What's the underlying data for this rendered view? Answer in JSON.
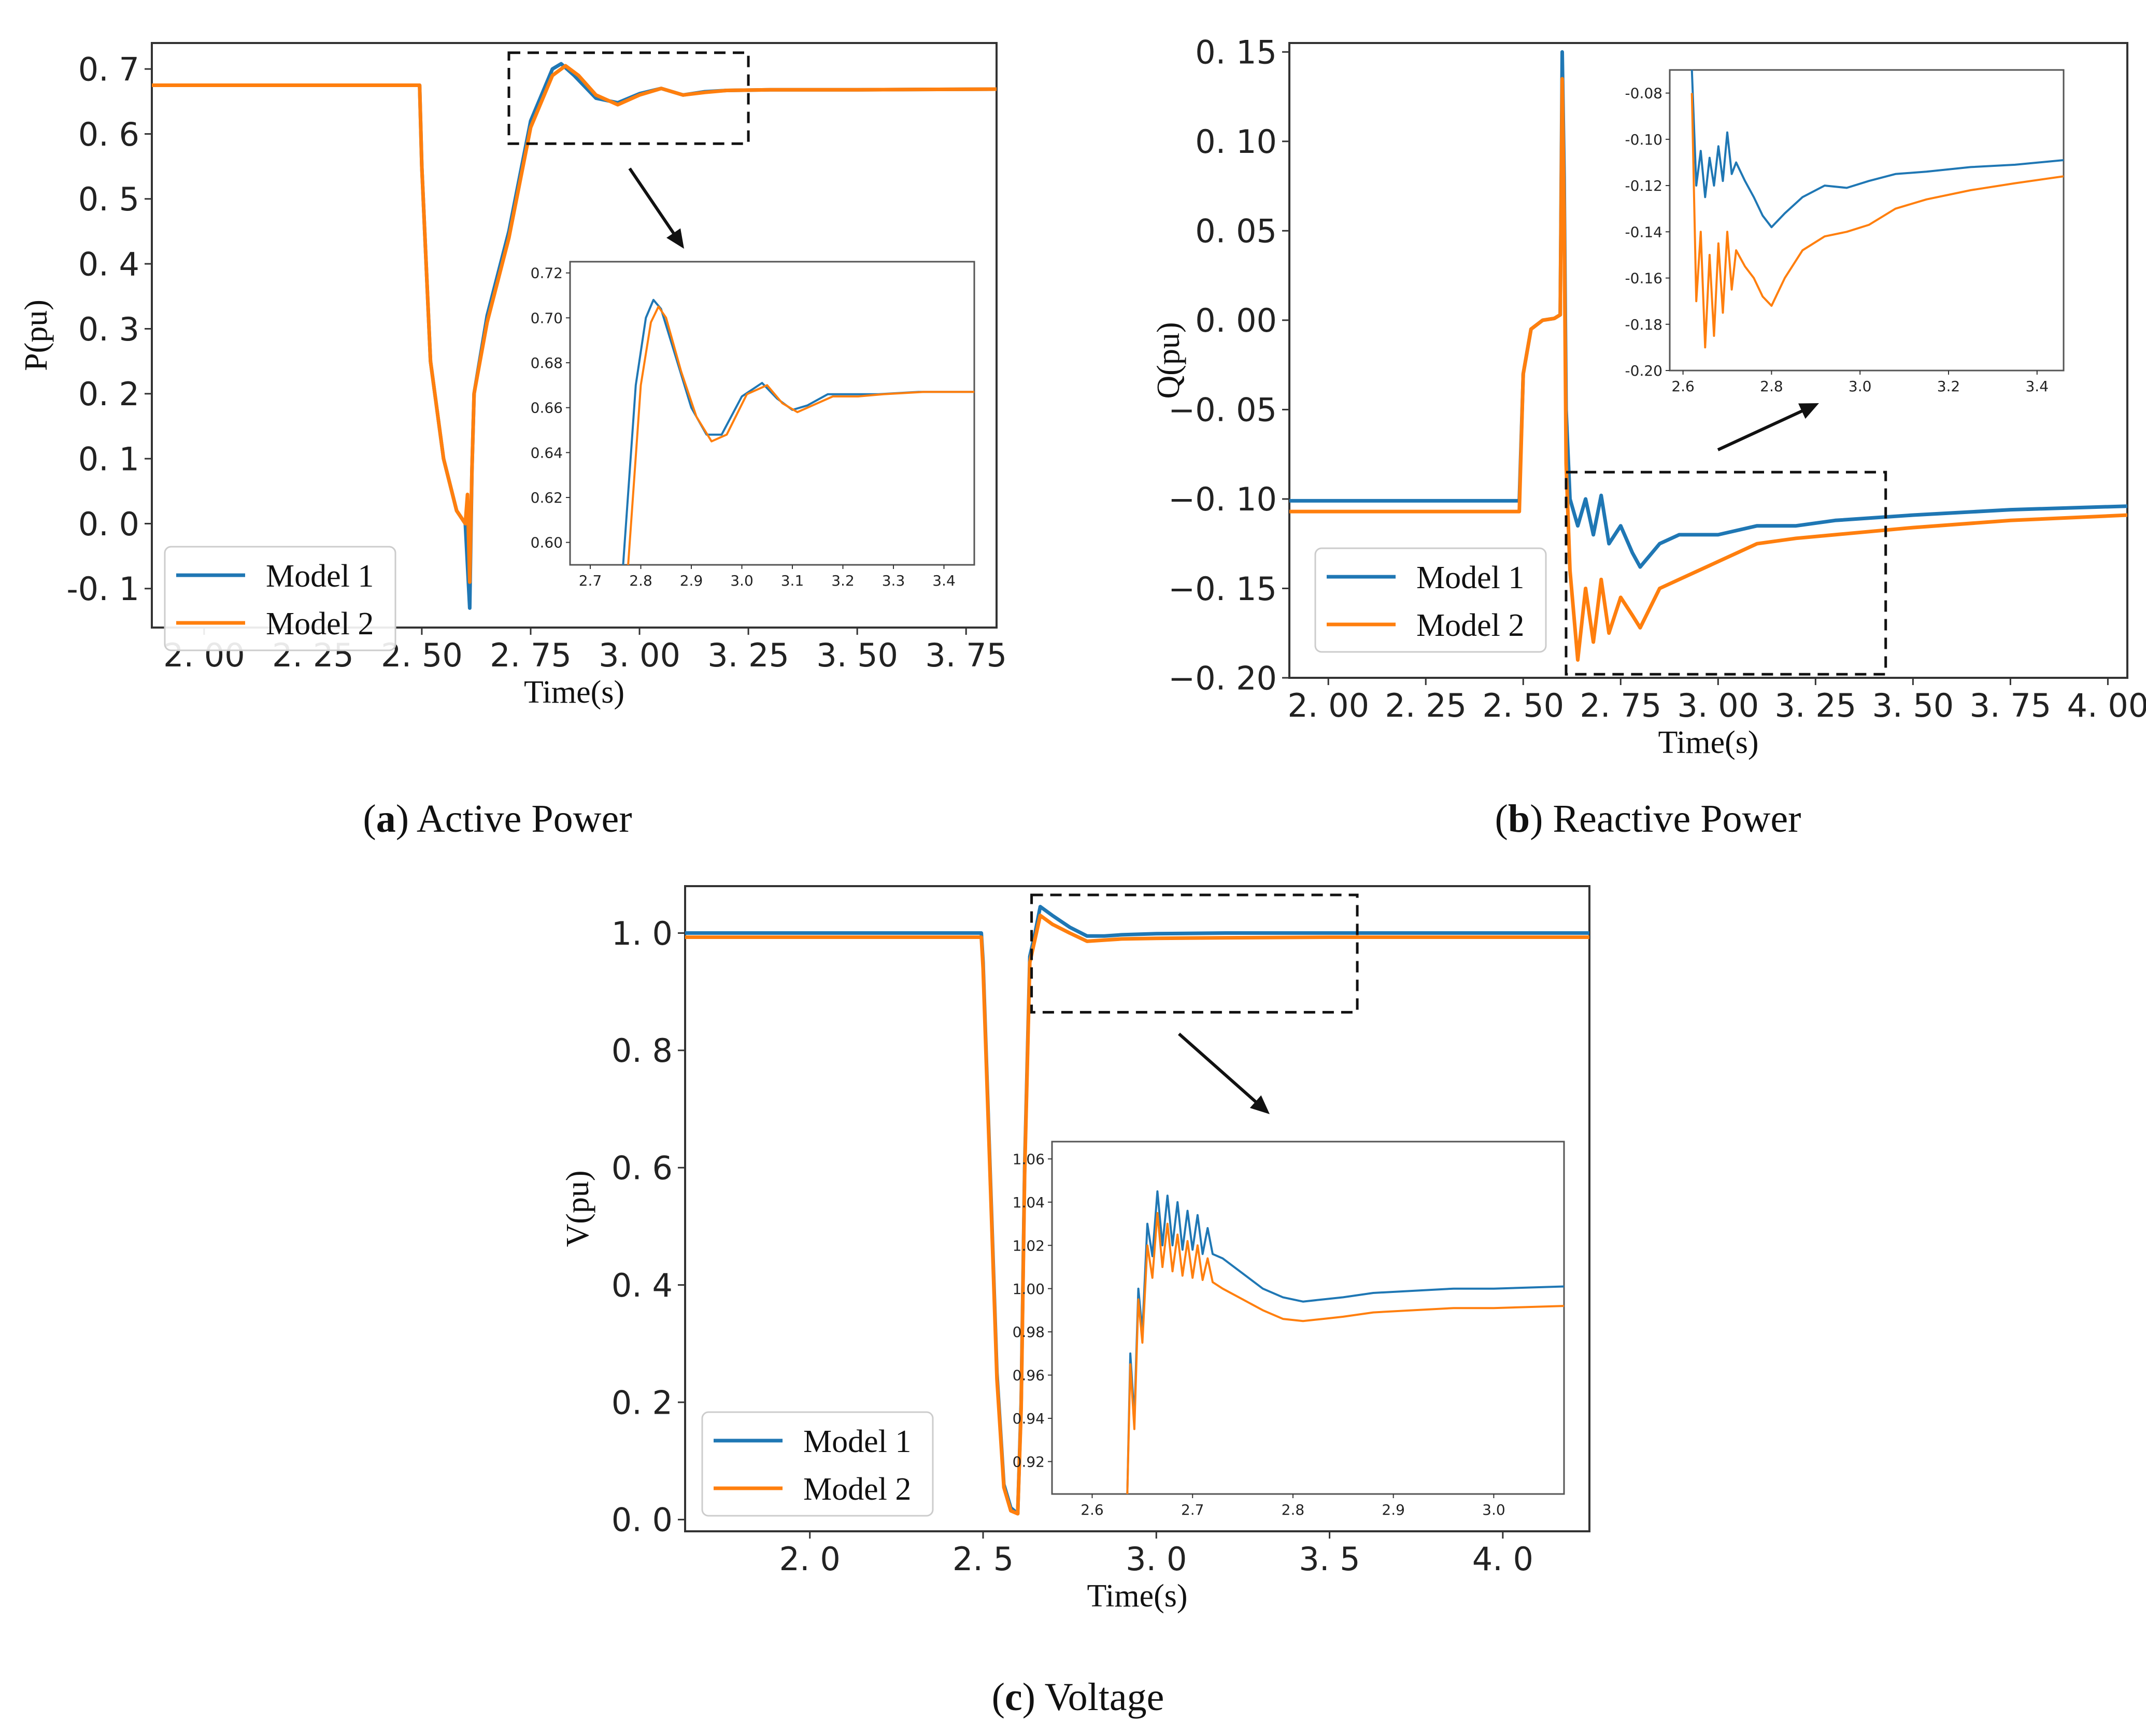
{
  "figure": {
    "captions": [
      {
        "letter": "a",
        "text": "Active Power"
      },
      {
        "letter": "b",
        "text": "Reactive Power"
      },
      {
        "letter": "c",
        "text": "Voltage"
      }
    ]
  },
  "colors": {
    "model1": "#1f77b4",
    "model2": "#ff7f0e"
  },
  "chart_data": [
    {
      "id": "a",
      "type": "line",
      "title": "Active Power",
      "xlabel": "Time(s)",
      "ylabel": "P(pu)",
      "xlim": [
        1.88,
        3.82
      ],
      "ylim": [
        -0.16,
        0.74
      ],
      "xticks": [
        2.0,
        2.25,
        2.5,
        2.75,
        3.0,
        3.25,
        3.5,
        3.75
      ],
      "xtick_labels": [
        "2. 00",
        "2. 25",
        "2. 50",
        "2. 75",
        "3. 00",
        "3. 25",
        "3. 50",
        "3. 75"
      ],
      "yticks": [
        -0.1,
        0.0,
        0.1,
        0.2,
        0.3,
        0.4,
        0.5,
        0.6,
        0.7
      ],
      "ytick_labels": [
        "-0. 1",
        "0. 0",
        "0. 1",
        "0. 2",
        "0. 3",
        "0. 4",
        "0. 5",
        "0. 6",
        "0. 7"
      ],
      "legend": {
        "placement": "lower-left",
        "entries": [
          "Model 1",
          "Model 2"
        ]
      },
      "zoom_box": {
        "x": [
          2.7,
          3.25
        ],
        "y": [
          0.585,
          0.725
        ]
      },
      "series": [
        {
          "name": "Model 1",
          "x": [
            1.88,
            2.495,
            2.5,
            2.52,
            2.55,
            2.58,
            2.6,
            2.61,
            2.615,
            2.62,
            2.65,
            2.7,
            2.75,
            2.8,
            2.82,
            2.85,
            2.9,
            2.95,
            3.0,
            3.05,
            3.1,
            3.15,
            3.2,
            3.3,
            3.4,
            3.5,
            3.82
          ],
          "y": [
            0.675,
            0.675,
            0.55,
            0.25,
            0.1,
            0.02,
            0.0,
            -0.13,
            0.08,
            0.2,
            0.32,
            0.45,
            0.62,
            0.7,
            0.708,
            0.69,
            0.655,
            0.648,
            0.662,
            0.67,
            0.66,
            0.665,
            0.667,
            0.668,
            0.668,
            0.668,
            0.669
          ]
        },
        {
          "name": "Model 2",
          "x": [
            1.88,
            2.495,
            2.5,
            2.52,
            2.55,
            2.58,
            2.6,
            2.605,
            2.61,
            2.615,
            2.62,
            2.65,
            2.7,
            2.75,
            2.8,
            2.83,
            2.86,
            2.9,
            2.95,
            3.0,
            3.05,
            3.1,
            3.15,
            3.2,
            3.3,
            3.4,
            3.5,
            3.82
          ],
          "y": [
            0.675,
            0.675,
            0.55,
            0.25,
            0.1,
            0.02,
            0.0,
            0.045,
            -0.09,
            0.08,
            0.2,
            0.31,
            0.44,
            0.61,
            0.69,
            0.705,
            0.69,
            0.66,
            0.645,
            0.66,
            0.67,
            0.66,
            0.664,
            0.667,
            0.668,
            0.668,
            0.668,
            0.669
          ]
        }
      ],
      "inset": {
        "xlim": [
          2.66,
          3.46
        ],
        "ylim": [
          0.59,
          0.725
        ],
        "xticks": [
          2.7,
          2.8,
          2.9,
          3.0,
          3.1,
          3.2,
          3.3,
          3.4
        ],
        "xtick_labels": [
          "2.7",
          "2.8",
          "2.9",
          "3.0",
          "3.1",
          "3.2",
          "3.3",
          "3.4"
        ],
        "yticks": [
          0.6,
          0.62,
          0.64,
          0.66,
          0.68,
          0.7,
          0.72
        ],
        "ytick_labels": [
          "0.60",
          "0.62",
          "0.64",
          "0.66",
          "0.68",
          "0.70",
          "0.72"
        ],
        "series": [
          {
            "name": "Model 1",
            "x": [
              2.765,
              2.79,
              2.81,
              2.825,
              2.84,
              2.87,
              2.9,
              2.93,
              2.96,
              3.0,
              3.04,
              3.07,
              3.1,
              3.13,
              3.17,
              3.22,
              3.27,
              3.35,
              3.46
            ],
            "y": [
              0.59,
              0.67,
              0.7,
              0.708,
              0.704,
              0.682,
              0.66,
              0.648,
              0.648,
              0.665,
              0.671,
              0.664,
              0.659,
              0.661,
              0.666,
              0.666,
              0.666,
              0.667,
              0.667
            ]
          },
          {
            "name": "Model 2",
            "x": [
              2.775,
              2.8,
              2.82,
              2.835,
              2.85,
              2.88,
              2.91,
              2.94,
              2.97,
              3.01,
              3.05,
              3.08,
              3.11,
              3.14,
              3.18,
              3.23,
              3.28,
              3.36,
              3.46
            ],
            "y": [
              0.59,
              0.67,
              0.698,
              0.705,
              0.7,
              0.676,
              0.656,
              0.645,
              0.648,
              0.666,
              0.67,
              0.662,
              0.658,
              0.661,
              0.665,
              0.665,
              0.666,
              0.667,
              0.667
            ]
          }
        ]
      }
    },
    {
      "id": "b",
      "type": "line",
      "title": "Reactive Power",
      "xlabel": "Time(s)",
      "ylabel": "Q(pu)",
      "xlim": [
        1.9,
        4.05
      ],
      "ylim": [
        -0.2,
        0.155
      ],
      "xticks": [
        2.0,
        2.25,
        2.5,
        2.75,
        3.0,
        3.25,
        3.5,
        3.75,
        4.0
      ],
      "xtick_labels": [
        "2. 00",
        "2. 25",
        "2. 50",
        "2. 75",
        "3. 00",
        "3. 25",
        "3. 50",
        "3. 75",
        "4. 00"
      ],
      "yticks": [
        -0.2,
        -0.15,
        -0.1,
        -0.05,
        0.0,
        0.05,
        0.1,
        0.15
      ],
      "ytick_labels": [
        "−0. 20",
        "−0. 15",
        "−0. 10",
        "−0. 05",
        "0. 00",
        "0. 05",
        "0. 10",
        "0. 15"
      ],
      "legend": {
        "placement": "lower-left",
        "entries": [
          "Model 1",
          "Model 2"
        ]
      },
      "zoom_box": {
        "x": [
          2.61,
          3.43
        ],
        "y": [
          -0.198,
          -0.085
        ]
      },
      "series": [
        {
          "name": "Model 1",
          "x": [
            1.9,
            2.49,
            2.5,
            2.52,
            2.55,
            2.58,
            2.595,
            2.6,
            2.605,
            2.61,
            2.62,
            2.64,
            2.66,
            2.68,
            2.7,
            2.72,
            2.75,
            2.78,
            2.8,
            2.85,
            2.9,
            3.0,
            3.1,
            3.2,
            3.3,
            3.5,
            3.75,
            4.05
          ],
          "y": [
            -0.101,
            -0.101,
            -0.03,
            -0.005,
            0.0,
            0.001,
            0.003,
            0.15,
            0.08,
            -0.05,
            -0.1,
            -0.115,
            -0.1,
            -0.12,
            -0.098,
            -0.125,
            -0.115,
            -0.13,
            -0.138,
            -0.125,
            -0.12,
            -0.12,
            -0.115,
            -0.115,
            -0.112,
            -0.109,
            -0.106,
            -0.104
          ]
        },
        {
          "name": "Model 2",
          "x": [
            1.9,
            2.49,
            2.5,
            2.52,
            2.55,
            2.58,
            2.595,
            2.6,
            2.605,
            2.61,
            2.62,
            2.64,
            2.66,
            2.68,
            2.7,
            2.72,
            2.75,
            2.78,
            2.8,
            2.85,
            2.9,
            3.0,
            3.1,
            3.2,
            3.3,
            3.5,
            3.75,
            4.05
          ],
          "y": [
            -0.107,
            -0.107,
            -0.03,
            -0.005,
            0.0,
            0.001,
            0.003,
            0.135,
            0.06,
            -0.08,
            -0.14,
            -0.19,
            -0.15,
            -0.18,
            -0.145,
            -0.175,
            -0.155,
            -0.165,
            -0.172,
            -0.15,
            -0.145,
            -0.135,
            -0.125,
            -0.122,
            -0.12,
            -0.116,
            -0.112,
            -0.109
          ]
        }
      ],
      "inset": {
        "xlim": [
          2.57,
          3.46
        ],
        "ylim": [
          -0.2,
          -0.07
        ],
        "xticks": [
          2.6,
          2.8,
          3.0,
          3.2,
          3.4
        ],
        "xtick_labels": [
          "2.6",
          "2.8",
          "3.0",
          "3.2",
          "3.4"
        ],
        "yticks": [
          -0.2,
          -0.18,
          -0.16,
          -0.14,
          -0.12,
          -0.1,
          -0.08
        ],
        "ytick_labels": [
          "-0.20",
          "-0.18",
          "-0.16",
          "-0.14",
          "-0.12",
          "-0.10",
          "-0.08"
        ],
        "series": [
          {
            "name": "Model 1",
            "x": [
              2.62,
              2.63,
              2.64,
              2.65,
              2.66,
              2.67,
              2.68,
              2.69,
              2.7,
              2.71,
              2.72,
              2.74,
              2.76,
              2.78,
              2.8,
              2.83,
              2.87,
              2.92,
              2.97,
              3.02,
              3.08,
              3.15,
              3.25,
              3.35,
              3.46
            ],
            "y": [
              -0.07,
              -0.12,
              -0.105,
              -0.125,
              -0.108,
              -0.12,
              -0.103,
              -0.118,
              -0.097,
              -0.115,
              -0.11,
              -0.118,
              -0.125,
              -0.133,
              -0.138,
              -0.132,
              -0.125,
              -0.12,
              -0.121,
              -0.118,
              -0.115,
              -0.114,
              -0.112,
              -0.111,
              -0.109
            ]
          },
          {
            "name": "Model 2",
            "x": [
              2.62,
              2.63,
              2.64,
              2.65,
              2.66,
              2.67,
              2.68,
              2.69,
              2.7,
              2.71,
              2.72,
              2.74,
              2.76,
              2.78,
              2.8,
              2.83,
              2.87,
              2.92,
              2.97,
              3.02,
              3.08,
              3.15,
              3.25,
              3.35,
              3.46
            ],
            "y": [
              -0.08,
              -0.17,
              -0.14,
              -0.19,
              -0.15,
              -0.185,
              -0.145,
              -0.175,
              -0.14,
              -0.165,
              -0.148,
              -0.155,
              -0.16,
              -0.168,
              -0.172,
              -0.16,
              -0.148,
              -0.142,
              -0.14,
              -0.137,
              -0.13,
              -0.126,
              -0.122,
              -0.119,
              -0.116
            ]
          }
        ]
      }
    },
    {
      "id": "c",
      "type": "line",
      "title": "Voltage",
      "xlabel": "Time(s)",
      "ylabel": "V(pu)",
      "xlim": [
        1.64,
        4.25
      ],
      "ylim": [
        -0.02,
        1.08
      ],
      "xticks": [
        2.0,
        2.5,
        3.0,
        3.5,
        4.0
      ],
      "xtick_labels": [
        "2. 0",
        "2. 5",
        "3. 0",
        "3. 5",
        "4. 0"
      ],
      "yticks": [
        0.0,
        0.2,
        0.4,
        0.6,
        0.8,
        1.0
      ],
      "ytick_labels": [
        "0. 0",
        "0. 2",
        "0. 4",
        "0. 6",
        "0. 8",
        "1. 0"
      ],
      "legend": {
        "placement": "lower-left",
        "entries": [
          "Model 1",
          "Model 2"
        ]
      },
      "zoom_box": {
        "x": [
          2.64,
          3.58
        ],
        "y": [
          0.865,
          1.065
        ]
      },
      "series": [
        {
          "name": "Model 1",
          "x": [
            1.64,
            2.495,
            2.5,
            2.52,
            2.54,
            2.56,
            2.58,
            2.6,
            2.61,
            2.62,
            2.635,
            2.65,
            2.665,
            2.7,
            2.75,
            2.8,
            2.85,
            2.9,
            3.0,
            3.2,
            3.5,
            4.25
          ],
          "y": [
            1.0,
            1.0,
            0.95,
            0.6,
            0.25,
            0.06,
            0.02,
            0.01,
            0.2,
            0.6,
            0.96,
            1.0,
            1.045,
            1.03,
            1.01,
            0.995,
            0.995,
            0.997,
            0.999,
            1.0,
            1.0,
            1.0
          ]
        },
        {
          "name": "Model 2",
          "x": [
            1.64,
            2.495,
            2.5,
            2.52,
            2.54,
            2.56,
            2.58,
            2.6,
            2.61,
            2.62,
            2.635,
            2.65,
            2.665,
            2.7,
            2.75,
            2.8,
            2.85,
            2.9,
            3.0,
            3.2,
            3.5,
            4.25
          ],
          "y": [
            0.993,
            0.993,
            0.94,
            0.59,
            0.24,
            0.055,
            0.015,
            0.01,
            0.19,
            0.59,
            0.95,
            0.99,
            1.03,
            1.015,
            1.0,
            0.986,
            0.988,
            0.99,
            0.991,
            0.992,
            0.993,
            0.993
          ]
        }
      ],
      "inset": {
        "xlim": [
          2.56,
          3.07
        ],
        "ylim": [
          0.905,
          1.068
        ],
        "xticks": [
          2.6,
          2.7,
          2.8,
          2.9,
          3.0
        ],
        "xtick_labels": [
          "2.6",
          "2.7",
          "2.8",
          "2.9",
          "3.0"
        ],
        "yticks": [
          0.92,
          0.94,
          0.96,
          0.98,
          1.0,
          1.02,
          1.04,
          1.06
        ],
        "ytick_labels": [
          "0.92",
          "0.94",
          "0.96",
          "0.98",
          "1.00",
          "1.02",
          "1.04",
          "1.06"
        ],
        "series": [
          {
            "name": "Model 1",
            "x": [
              2.635,
              2.638,
              2.642,
              2.646,
              2.65,
              2.655,
              2.66,
              2.665,
              2.67,
              2.675,
              2.68,
              2.685,
              2.69,
              2.695,
              2.7,
              2.705,
              2.71,
              2.715,
              2.72,
              2.73,
              2.75,
              2.77,
              2.79,
              2.81,
              2.83,
              2.85,
              2.88,
              2.92,
              2.96,
              3.0,
              3.07
            ],
            "y": [
              0.905,
              0.97,
              0.94,
              1.0,
              0.98,
              1.03,
              1.015,
              1.045,
              1.02,
              1.043,
              1.02,
              1.04,
              1.018,
              1.036,
              1.018,
              1.034,
              1.016,
              1.028,
              1.016,
              1.014,
              1.007,
              1.0,
              0.996,
              0.994,
              0.995,
              0.996,
              0.998,
              0.999,
              1.0,
              1.0,
              1.001
            ]
          },
          {
            "name": "Model 2",
            "x": [
              2.635,
              2.638,
              2.642,
              2.646,
              2.65,
              2.655,
              2.66,
              2.665,
              2.67,
              2.675,
              2.68,
              2.685,
              2.69,
              2.695,
              2.7,
              2.705,
              2.71,
              2.715,
              2.72,
              2.73,
              2.75,
              2.77,
              2.79,
              2.81,
              2.83,
              2.85,
              2.88,
              2.92,
              2.96,
              3.0,
              3.07
            ],
            "y": [
              0.905,
              0.965,
              0.935,
              0.995,
              0.975,
              1.02,
              1.005,
              1.035,
              1.01,
              1.03,
              1.008,
              1.025,
              1.006,
              1.022,
              1.005,
              1.02,
              1.004,
              1.014,
              1.003,
              1.0,
              0.995,
              0.99,
              0.986,
              0.985,
              0.986,
              0.987,
              0.989,
              0.99,
              0.991,
              0.991,
              0.992
            ]
          }
        ]
      }
    }
  ]
}
